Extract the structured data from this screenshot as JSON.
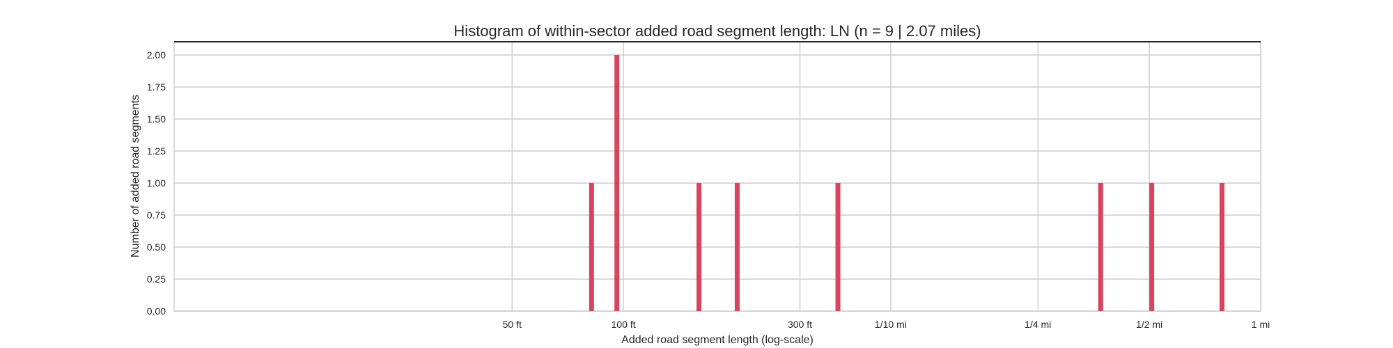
{
  "chart_data": {
    "type": "bar",
    "title": "Histogram of within-sector added road segment length: LN (n = 9 | 2.07 miles)",
    "xlabel": "Added road segment length (log-scale)",
    "ylabel": "Number of added road segments",
    "x_scale": "log",
    "x_unit": "ft",
    "xlim": [
      6.1,
      5280
    ],
    "ylim": [
      0,
      2.0
    ],
    "x_ticks": [
      {
        "value": 50,
        "label": "50 ft"
      },
      {
        "value": 100,
        "label": "100 ft"
      },
      {
        "value": 300,
        "label": "300 ft"
      },
      {
        "value": 528,
        "label": "1/10 mi"
      },
      {
        "value": 1320,
        "label": "1/4 mi"
      },
      {
        "value": 2640,
        "label": "1/2 mi"
      },
      {
        "value": 5280,
        "label": "1 mi"
      }
    ],
    "y_ticks": [
      {
        "value": 0.0,
        "label": "0.00"
      },
      {
        "value": 0.25,
        "label": "0.25"
      },
      {
        "value": 0.5,
        "label": "0.50"
      },
      {
        "value": 0.75,
        "label": "0.75"
      },
      {
        "value": 1.0,
        "label": "1.00"
      },
      {
        "value": 1.25,
        "label": "1.25"
      },
      {
        "value": 1.5,
        "label": "1.50"
      },
      {
        "value": 1.75,
        "label": "1.75"
      },
      {
        "value": 2.0,
        "label": "2.00"
      }
    ],
    "bars": [
      {
        "x": 82,
        "count": 1
      },
      {
        "x": 96,
        "count": 2
      },
      {
        "x": 160,
        "count": 1
      },
      {
        "x": 203,
        "count": 1
      },
      {
        "x": 380,
        "count": 1
      },
      {
        "x": 1950,
        "count": 1
      },
      {
        "x": 2680,
        "count": 1
      },
      {
        "x": 4150,
        "count": 1
      }
    ],
    "grid": true,
    "bar_color": "#d9435e"
  }
}
